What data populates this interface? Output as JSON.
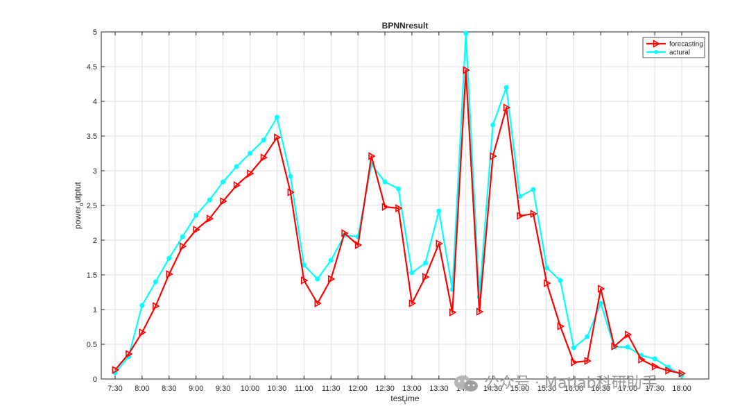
{
  "chart_data": {
    "type": "line",
    "title": "BPNNresult",
    "xlabel": "test",
    "xlabel_sub": "t",
    "xlabel_rest": "ime",
    "ylabel": "power",
    "ylabel_sub": "o",
    "ylabel_rest": "utptut",
    "ylim": [
      0,
      5
    ],
    "yticks": [
      "0",
      "0.5",
      "1",
      "1.5",
      "2",
      "2.5",
      "3",
      "3.5",
      "4",
      "4.5",
      "5"
    ],
    "xticks": [
      "7:30",
      "8:00",
      "8:30",
      "9:00",
      "9:30",
      "10:00",
      "10:30",
      "11:00",
      "11:30",
      "12:00",
      "12:30",
      "13:00",
      "13:30",
      "14:00",
      "14:30",
      "15:00",
      "15:30",
      "16:00",
      "16:30",
      "17:00",
      "17:30",
      "18:00"
    ],
    "grid": true,
    "legend_position": "top-right",
    "series": [
      {
        "name": "forecasting",
        "color": "#ff0000",
        "marker": "triangle-right",
        "values": [
          0.13,
          0.36,
          0.67,
          1.05,
          1.51,
          1.91,
          2.15,
          2.31,
          2.56,
          2.79,
          2.96,
          3.19,
          3.48,
          2.69,
          1.42,
          1.09,
          1.44,
          2.1,
          1.93,
          3.21,
          2.48,
          2.46,
          1.09,
          1.47,
          1.95,
          0.96,
          4.45,
          0.97,
          3.21,
          3.91,
          2.35,
          2.38,
          1.38,
          0.76,
          0.24,
          0.26,
          1.3,
          0.47,
          0.64,
          0.28,
          0.18,
          0.12,
          0.08
        ]
      },
      {
        "name": "actural",
        "color": "#00ffff",
        "marker": "circle",
        "values": [
          0.09,
          0.32,
          1.06,
          1.4,
          1.74,
          2.05,
          2.36,
          2.58,
          2.84,
          3.06,
          3.25,
          3.44,
          3.77,
          2.92,
          1.64,
          1.44,
          1.71,
          2.07,
          2.05,
          3.09,
          2.84,
          2.74,
          1.53,
          1.67,
          2.42,
          1.29,
          4.98,
          1.18,
          3.66,
          4.2,
          2.63,
          2.73,
          1.6,
          1.42,
          0.45,
          0.61,
          1.09,
          0.46,
          0.46,
          0.34,
          0.29,
          0.17,
          0.05
        ]
      }
    ]
  },
  "watermark": {
    "text": "公众号 · Matlab科研助手",
    "icon": "wechat-icon"
  }
}
